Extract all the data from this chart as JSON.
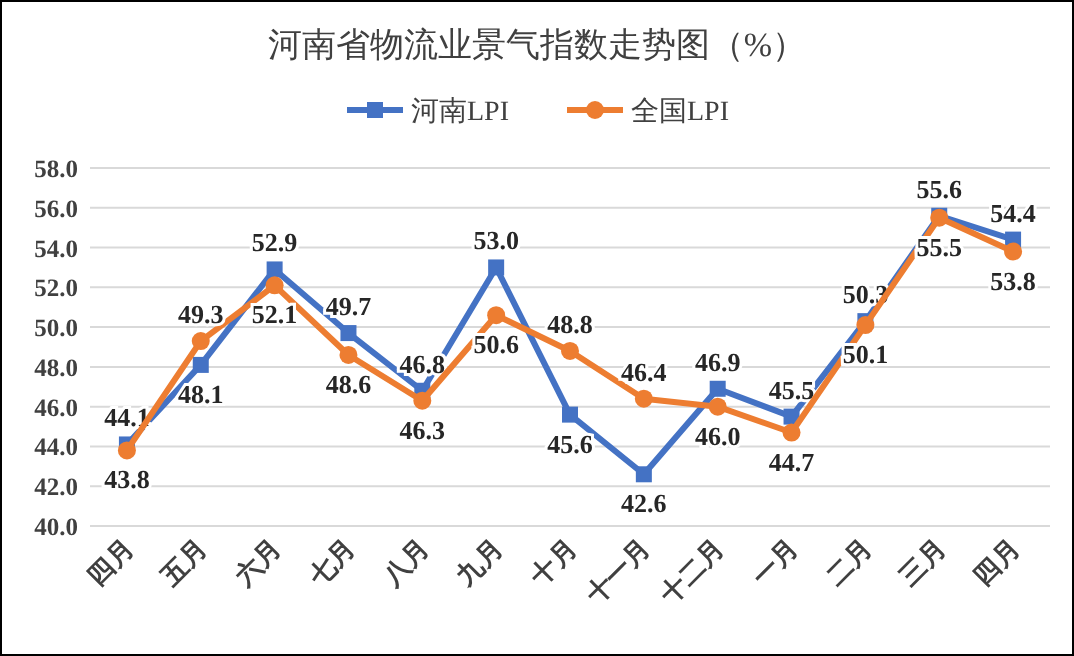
{
  "chart_data": {
    "type": "line",
    "title": "河南省物流业景气指数走势图（%）",
    "categories": [
      "四月",
      "五月",
      "六月",
      "七月",
      "八月",
      "九月",
      "十月",
      "十一月",
      "十二月",
      "一月",
      "二月",
      "三月",
      "四月"
    ],
    "series": [
      {
        "name": "河南LPI",
        "color": "#4472c4",
        "marker": "square",
        "values": [
          44.1,
          48.1,
          52.9,
          49.7,
          46.8,
          53.0,
          45.6,
          42.6,
          46.9,
          45.5,
          50.3,
          55.6,
          54.4
        ],
        "value_labels": [
          "44.1",
          "48.1",
          "52.9",
          "49.7",
          "46.8",
          "53.0",
          "45.6",
          "42.6",
          "46.9",
          "45.5",
          "50.3",
          "55.6",
          "54.4"
        ]
      },
      {
        "name": "全国LPI",
        "color": "#ed7d31",
        "marker": "circle",
        "values": [
          43.8,
          49.3,
          52.1,
          48.6,
          46.3,
          50.6,
          48.8,
          46.4,
          46.0,
          44.7,
          50.1,
          55.5,
          53.8
        ],
        "value_labels": [
          "43.8",
          "49.3",
          "52.1",
          "48.6",
          "46.3",
          "50.6",
          "48.8",
          "46.4",
          "46.0",
          "44.7",
          "50.1",
          "55.5",
          "53.8"
        ]
      }
    ],
    "ylim": [
      40,
      58
    ],
    "yticks": [
      {
        "value": 40,
        "label": "40.0"
      },
      {
        "value": 42,
        "label": "42.0"
      },
      {
        "value": 44,
        "label": "44.0"
      },
      {
        "value": 46,
        "label": "46.0"
      },
      {
        "value": 48,
        "label": "48.0"
      },
      {
        "value": 50,
        "label": "50.0"
      },
      {
        "value": 52,
        "label": "52.0"
      },
      {
        "value": 54,
        "label": "54.0"
      },
      {
        "value": 56,
        "label": "56.0"
      },
      {
        "value": 58,
        "label": "58.0"
      }
    ],
    "grid": "y",
    "legend": "top"
  }
}
